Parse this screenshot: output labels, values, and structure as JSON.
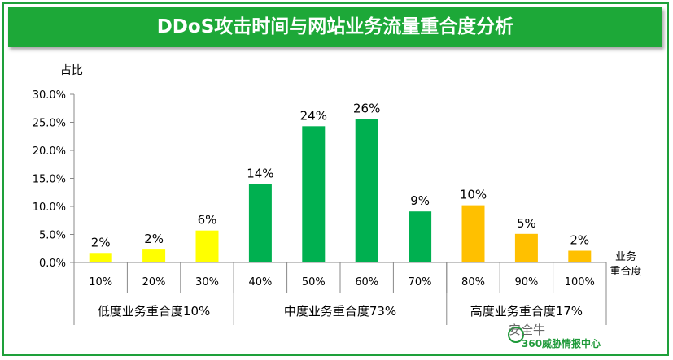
{
  "header": {
    "title": "DDoS攻击时间与网站业务流量重合度分析"
  },
  "chart_data": {
    "type": "bar",
    "title": "DDoS攻击时间与网站业务流量重合度分析",
    "ylabel": "占比",
    "xlabel": "业务重合度",
    "ylim": [
      0,
      30
    ],
    "yticks": [
      "0.0%",
      "5.0%",
      "10.0%",
      "15.0%",
      "20.0%",
      "25.0%",
      "30.0%"
    ],
    "categories": [
      "10%",
      "20%",
      "30%",
      "40%",
      "50%",
      "60%",
      "70%",
      "80%",
      "90%",
      "100%"
    ],
    "values": [
      1.7,
      2.3,
      5.7,
      14.0,
      24.3,
      25.6,
      9.1,
      10.2,
      5.1,
      2.1
    ],
    "data_labels": [
      "2%",
      "2%",
      "6%",
      "14%",
      "24%",
      "26%",
      "9%",
      "10%",
      "5%",
      "2%"
    ],
    "colors": [
      "#ffff00",
      "#ffff00",
      "#ffff00",
      "#00b050",
      "#00b050",
      "#00b050",
      "#00b050",
      "#ffc000",
      "#ffc000",
      "#ffc000"
    ],
    "groups": [
      {
        "label": "低度业务重合度10%",
        "start": 0,
        "end": 2
      },
      {
        "label": "中度业务重合度73%",
        "start": 3,
        "end": 6
      },
      {
        "label": "高度业务重合度17%",
        "start": 7,
        "end": 9
      }
    ]
  },
  "watermark": {
    "text": "安全牛",
    "sub": "360威胁情报中心"
  }
}
